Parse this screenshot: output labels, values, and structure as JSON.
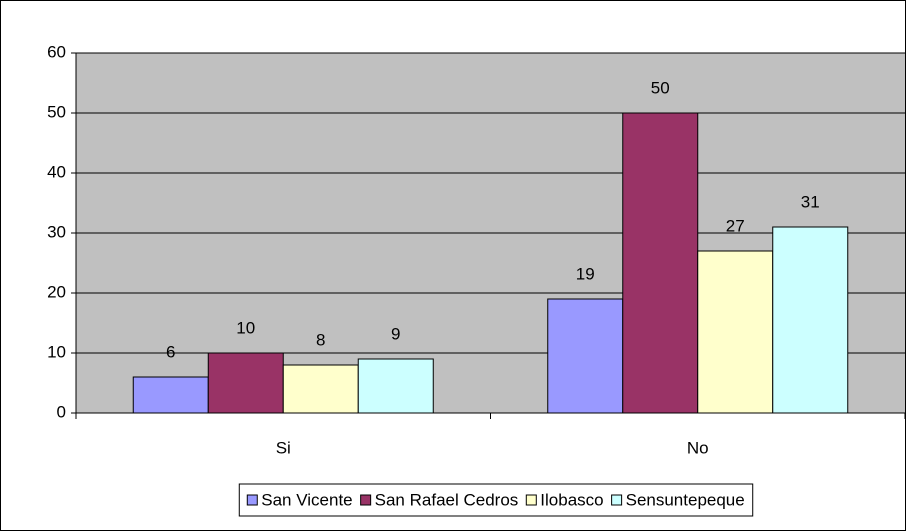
{
  "chart_data": {
    "type": "bar",
    "categories": [
      "Si",
      "No"
    ],
    "series": [
      {
        "name": "San Vicente",
        "color": "#9999ff",
        "values": [
          6,
          19
        ]
      },
      {
        "name": "San Rafael Cedros",
        "color": "#993366",
        "values": [
          10,
          50
        ]
      },
      {
        "name": "Ilobasco",
        "color": "#ffffcc",
        "values": [
          8,
          27
        ]
      },
      {
        "name": "Sensuntepeque",
        "color": "#ccffff",
        "values": [
          9,
          31
        ]
      }
    ],
    "ylim": [
      0,
      60
    ],
    "yticks": [
      0,
      10,
      20,
      30,
      40,
      50,
      60
    ],
    "grid": true,
    "legend": "bottom"
  }
}
